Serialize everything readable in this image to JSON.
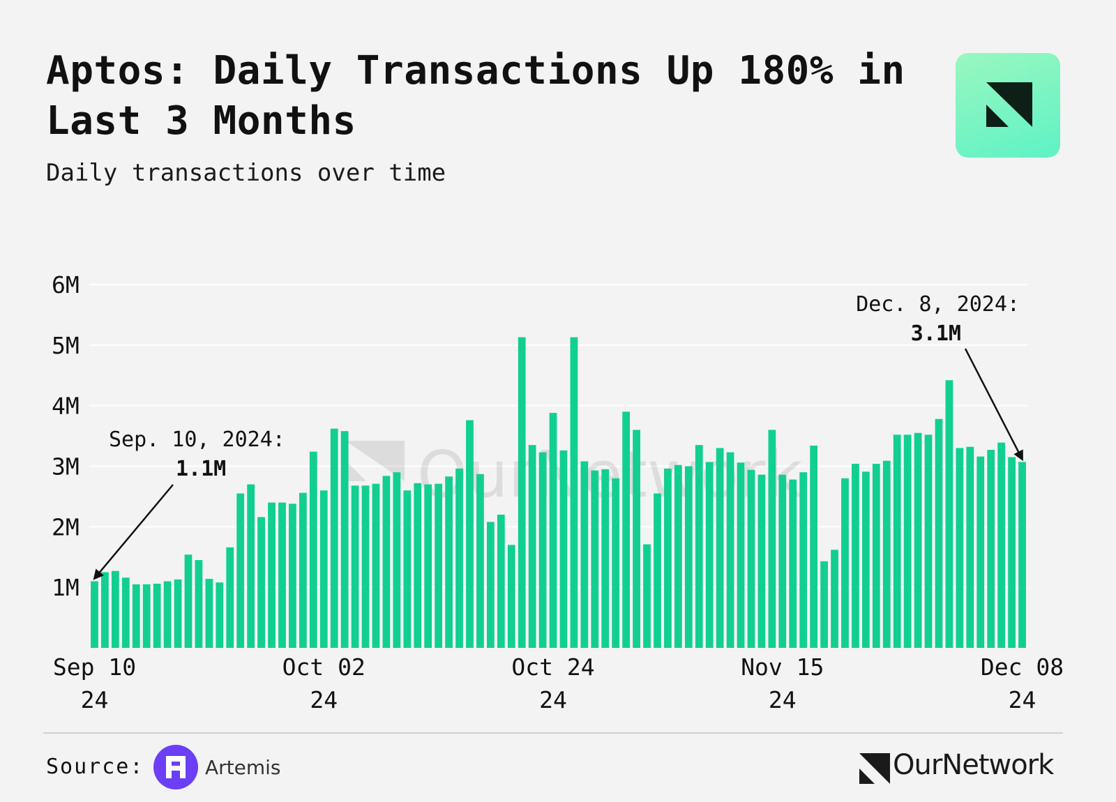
{
  "header": {
    "title": "Aptos: Daily Transactions Up 180% in Last 3 Months",
    "subtitle": "Daily transactions over time"
  },
  "footer": {
    "source_label": "Source:",
    "source_name": "Artemis",
    "brand_name": "OurNetwork"
  },
  "watermark": "OurNetwork",
  "colors": {
    "bar": "#11cf91",
    "background": "#f3f3f3",
    "gridline": "#ffffff",
    "text": "#111111"
  },
  "chart_data": {
    "type": "bar",
    "title": "Aptos: Daily Transactions Up 180% in Last 3 Months",
    "subtitle": "Daily transactions over time",
    "xlabel": "",
    "ylabel": "",
    "ylim": [
      0,
      6
    ],
    "y_unit": "M",
    "yticks": [
      1,
      2,
      3,
      4,
      5,
      6
    ],
    "ytick_labels": [
      "1M",
      "2M",
      "3M",
      "4M",
      "5M",
      "6M"
    ],
    "grid": true,
    "start_date": "Sep 10, 2024",
    "x_ticks": [
      {
        "index": 0,
        "line1": "Sep 10",
        "line2": "24"
      },
      {
        "index": 22,
        "line1": "Oct 02",
        "line2": "24"
      },
      {
        "index": 44,
        "line1": "Oct 24",
        "line2": "24"
      },
      {
        "index": 66,
        "line1": "Nov 15",
        "line2": "24"
      },
      {
        "index": 89,
        "line1": "Dec 08",
        "line2": "24"
      }
    ],
    "series": [
      {
        "name": "Daily transactions (M)",
        "values": [
          1.1,
          1.25,
          1.27,
          1.16,
          1.05,
          1.05,
          1.06,
          1.1,
          1.13,
          1.54,
          1.45,
          1.14,
          1.08,
          1.66,
          2.55,
          2.7,
          2.16,
          2.4,
          2.4,
          2.38,
          2.56,
          3.24,
          2.6,
          3.62,
          3.58,
          2.68,
          2.68,
          2.71,
          2.84,
          2.9,
          2.6,
          2.72,
          2.7,
          2.71,
          2.83,
          2.96,
          3.76,
          2.87,
          2.08,
          2.2,
          1.7,
          5.13,
          3.35,
          3.23,
          3.88,
          3.26,
          5.13,
          3.08,
          2.93,
          2.95,
          2.8,
          3.9,
          3.6,
          1.71,
          2.55,
          2.96,
          3.02,
          3.0,
          3.35,
          3.07,
          3.3,
          3.23,
          3.06,
          2.94,
          2.86,
          3.6,
          2.86,
          2.78,
          2.9,
          3.34,
          1.43,
          1.62,
          2.8,
          3.04,
          2.91,
          3.04,
          3.09,
          3.52,
          3.52,
          3.55,
          3.52,
          3.78,
          4.42,
          3.3,
          3.32,
          3.16,
          3.27,
          3.39,
          3.15,
          3.07
        ]
      }
    ],
    "annotations": [
      {
        "index": 0,
        "line1": "Sep. 10, 2024:",
        "line2": "1.1M"
      },
      {
        "index": 89,
        "line1": "Dec. 8, 2024:",
        "line2": "3.1M"
      }
    ]
  }
}
